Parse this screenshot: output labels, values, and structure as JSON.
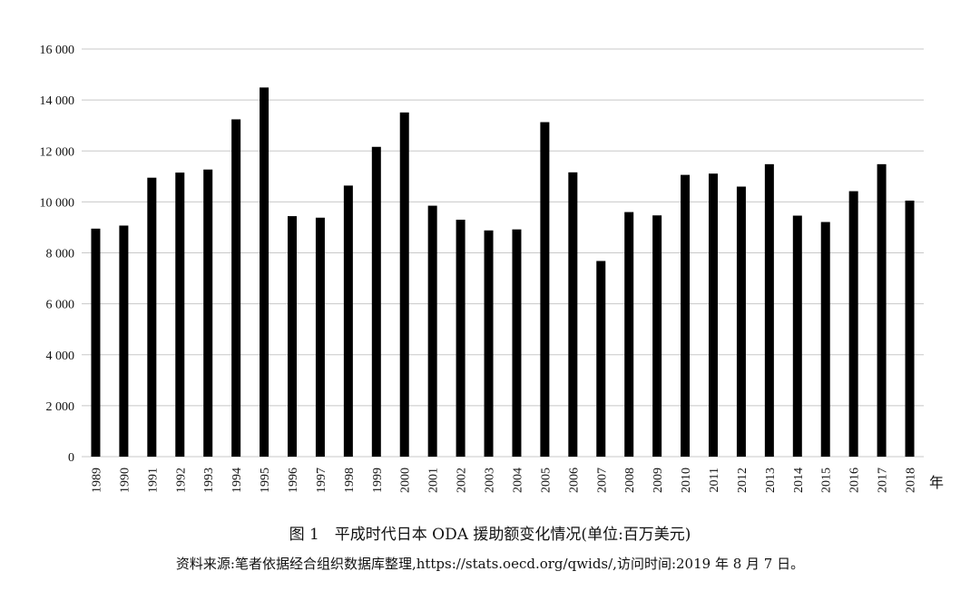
{
  "chart_data": {
    "type": "bar",
    "categories": [
      "1989",
      "1990",
      "1991",
      "1992",
      "1993",
      "1994",
      "1995",
      "1996",
      "1997",
      "1998",
      "1999",
      "2000",
      "2001",
      "2002",
      "2003",
      "2004",
      "2005",
      "2006",
      "2007",
      "2008",
      "2009",
      "2010",
      "2011",
      "2012",
      "2013",
      "2014",
      "2015",
      "2016",
      "2017",
      "2018"
    ],
    "values": [
      8950,
      9070,
      10950,
      11150,
      11270,
      13240,
      14490,
      9440,
      9380,
      10640,
      12160,
      13510,
      9850,
      9300,
      8880,
      8920,
      13130,
      11160,
      7680,
      9600,
      9470,
      11060,
      11110,
      10600,
      11480,
      9460,
      9210,
      10420,
      11480,
      10050
    ],
    "yticks": [
      "16 000",
      "14 000",
      "12 000",
      "10 000",
      "8 000",
      "6 000",
      "4 000",
      "2 000",
      "0"
    ],
    "ylim": [
      0,
      16000
    ],
    "x_unit": "年",
    "grid": true,
    "bar_color": "#000000",
    "grid_color": "#c8c8c8"
  },
  "figure": {
    "title": "图 1　平成时代日本 ODA 援助额变化情况(单位:百万美元)",
    "source": "资料来源:笔者依据经合组织数据库整理,https://stats.oecd.org/qwids/,访问时间:2019 年 8 月 7 日。"
  }
}
